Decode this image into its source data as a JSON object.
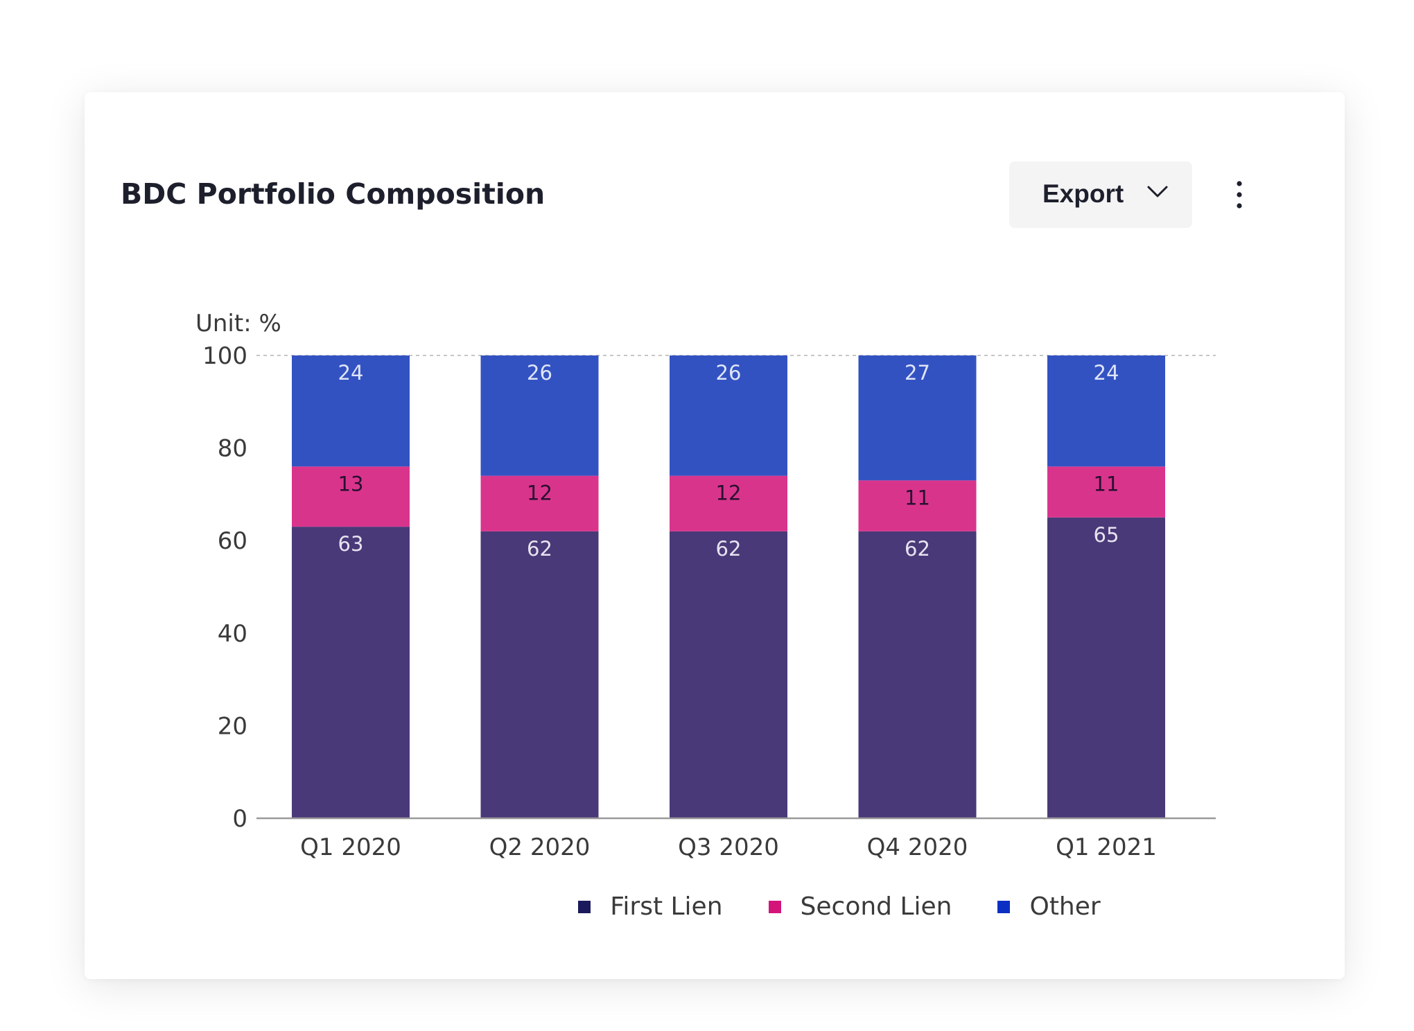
{
  "card": {
    "title": "BDC Portfolio Composition",
    "export_label": "Export"
  },
  "chart_data": {
    "type": "bar",
    "stacked": true,
    "unit_label": "Unit: %",
    "categories": [
      "Q1 2020",
      "Q2 2020",
      "Q3 2020",
      "Q4 2020",
      "Q1 2021"
    ],
    "series": [
      {
        "name": "First Lien",
        "color": "#4a3978",
        "legend_color": "#1c1a5c",
        "label_color": "#e6e3f0",
        "values": [
          63,
          62,
          62,
          62,
          65
        ]
      },
      {
        "name": "Second Lien",
        "color": "#d9348c",
        "legend_color": "#d3157a",
        "label_color": "#2a1030",
        "values": [
          13,
          12,
          12,
          11,
          11
        ]
      },
      {
        "name": "Other",
        "color": "#3352c2",
        "legend_color": "#0c2fc3",
        "label_color": "#dfe5f7",
        "values": [
          24,
          26,
          26,
          27,
          24
        ]
      }
    ],
    "ylim": [
      0,
      100
    ],
    "yticks": [
      0,
      20,
      40,
      60,
      80,
      100
    ],
    "xlabel": "",
    "ylabel": "",
    "legend_position": "bottom-center",
    "grid": false
  }
}
